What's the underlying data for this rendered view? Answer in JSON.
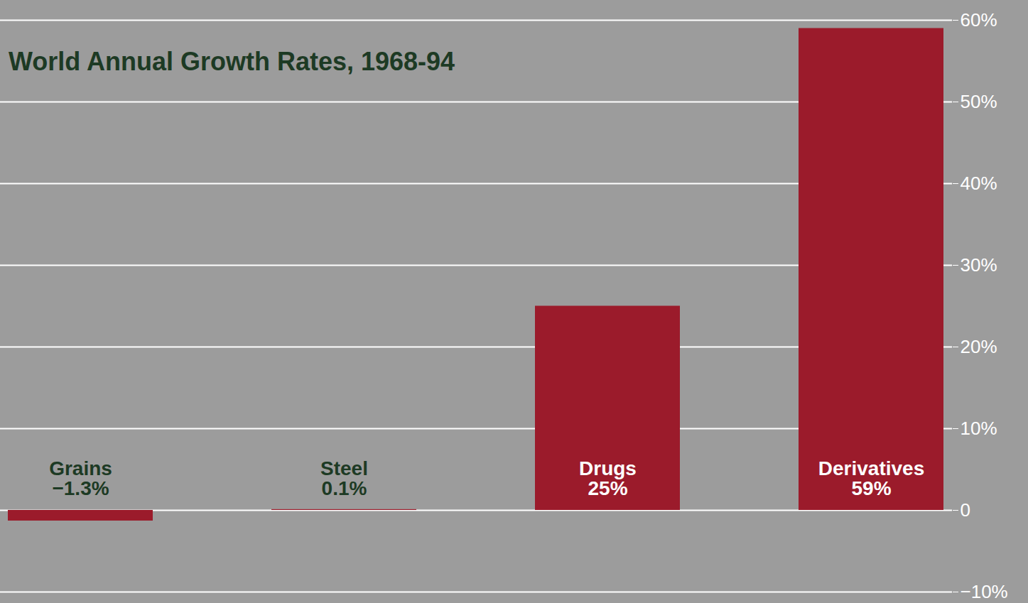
{
  "chart_data": {
    "type": "bar",
    "title": "World Annual Growth Rates, 1968-94",
    "categories": [
      "Grains",
      "Steel",
      "Drugs",
      "Derivatives"
    ],
    "values": [
      -1.3,
      0.1,
      25,
      59
    ],
    "value_labels": [
      "−1.3%",
      "0.1%",
      "25%",
      "59%"
    ],
    "color": "#9b1b2b",
    "ylim": [
      -10,
      60
    ],
    "yticks": [
      {
        "value": -10,
        "label": "−10%"
      },
      0,
      {
        "value": 10,
        "label": "10%"
      },
      {
        "value": 20,
        "label": "20%"
      },
      {
        "value": 30,
        "label": "30%"
      },
      {
        "value": 40,
        "label": "40%"
      },
      {
        "value": 50,
        "label": "50%"
      },
      {
        "value": 60,
        "label": "60%"
      }
    ],
    "grid": true,
    "data_labels": true,
    "tick_labels": "y"
  }
}
